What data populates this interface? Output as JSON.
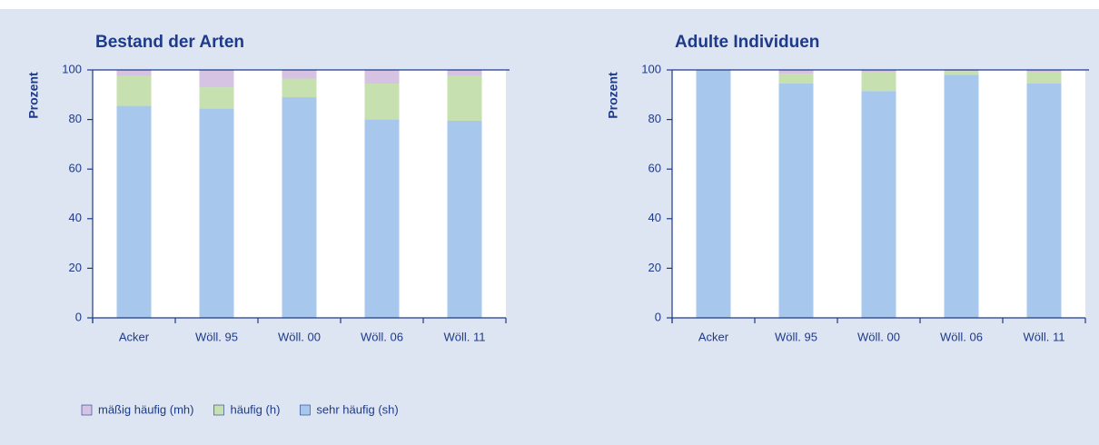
{
  "chart_data": [
    {
      "type": "bar",
      "stacked": true,
      "title": "Bestand der Arten",
      "y_label": "Prozent",
      "categories": [
        "Acker",
        "Wöll. 95",
        "Wöll. 00",
        "Wöll. 06",
        "Wöll. 11"
      ],
      "series": [
        {
          "name": "sehr häufig (sh)",
          "color": "#a7c8ec",
          "values": [
            85.5,
            84.5,
            89,
            80,
            79.5
          ]
        },
        {
          "name": "häufig (h)",
          "color": "#c6e0b0",
          "values": [
            12,
            8.5,
            7.5,
            14.5,
            18
          ]
        },
        {
          "name": "mäßig häufig (mh)",
          "color": "#d6c2e2",
          "values": [
            2.5,
            7,
            3.5,
            5.5,
            2.5
          ]
        }
      ],
      "ylim": [
        0,
        100
      ],
      "yticks": [
        0,
        20,
        40,
        60,
        80,
        100
      ]
    },
    {
      "type": "bar",
      "stacked": true,
      "title": "Adulte Individuen",
      "y_label": "Prozent",
      "categories": [
        "Acker",
        "Wöll. 95",
        "Wöll. 00",
        "Wöll. 06",
        "Wöll. 11"
      ],
      "series": [
        {
          "name": "sehr häufig (sh)",
          "color": "#a7c8ec",
          "values": [
            100,
            94.5,
            91.5,
            98,
            94.5
          ]
        },
        {
          "name": "häufig (h)",
          "color": "#c6e0b0",
          "values": [
            0,
            4,
            7.5,
            1.5,
            4.5
          ]
        },
        {
          "name": "mäßig häufig (mh)",
          "color": "#d6c2e2",
          "values": [
            0,
            1.5,
            1,
            0.5,
            1
          ]
        }
      ],
      "ylim": [
        0,
        100
      ],
      "yticks": [
        0,
        20,
        40,
        60,
        80,
        100
      ]
    }
  ]
}
